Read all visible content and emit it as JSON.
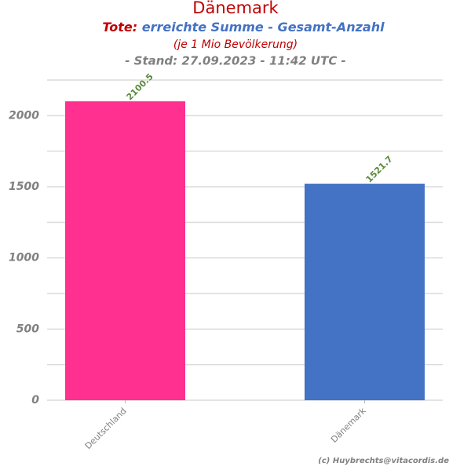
{
  "chart_data": {
    "type": "bar",
    "title": "Dänemark",
    "subtitle_prefix": "Tote:",
    "subtitle": "erreichte Summe - Gesamt-Anzahl",
    "subtitle_note": "(je 1 Mio Bevölkerung)",
    "stand": "- Stand: 27.09.2023 - 11:42 UTC -",
    "credit": "(c) Huybrechts@vitacordis.de",
    "categories": [
      "Deutschland",
      "Dänemark"
    ],
    "values": [
      2100.5,
      1521.7
    ],
    "colors": [
      "#ff3090",
      "#4472c4"
    ],
    "ylim": [
      0,
      2250
    ],
    "yticks": [
      0,
      500,
      1000,
      1500,
      2000
    ],
    "minor_yticks": [
      250,
      750,
      1250,
      1750,
      2250
    ],
    "grid": true
  }
}
